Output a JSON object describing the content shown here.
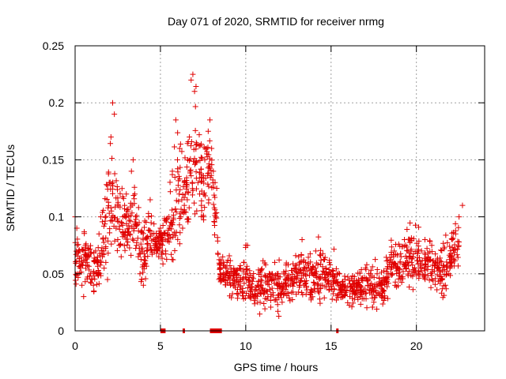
{
  "chart_data": {
    "type": "scatter",
    "title": "Day 071 of 2020, SRMTID for receiver nrmg",
    "xlabel": "GPS time / hours",
    "ylabel": "SRMTID / TECUs",
    "xlim": [
      0,
      24
    ],
    "ylim": [
      0,
      0.25
    ],
    "xticks": [
      0,
      5,
      10,
      15,
      20
    ],
    "yticks": [
      0,
      0.05,
      0.1,
      0.15,
      0.2,
      0.25
    ],
    "xtick_labels": [
      "0",
      "5",
      "10",
      "15",
      "20"
    ],
    "ytick_labels": [
      "0",
      "0.05",
      "0.1",
      "0.15",
      "0.2",
      "0.25"
    ],
    "grid": true,
    "marker": "plus",
    "color": "#e00000",
    "series": [
      {
        "name": "SRMTID",
        "points": [
          [
            0.0,
            0.1
          ],
          [
            0.1,
            0.09
          ],
          [
            0.2,
            0.07
          ],
          [
            0.3,
            0.055
          ],
          [
            0.4,
            0.04
          ],
          [
            0.5,
            0.03
          ],
          [
            0.6,
            0.075
          ],
          [
            0.7,
            0.06
          ],
          [
            0.8,
            0.065
          ],
          [
            0.9,
            0.05
          ],
          [
            1.0,
            0.045
          ],
          [
            1.1,
            0.035
          ],
          [
            1.2,
            0.07
          ],
          [
            1.3,
            0.06
          ],
          [
            1.4,
            0.085
          ],
          [
            1.5,
            0.1
          ],
          [
            1.6,
            0.065
          ],
          [
            1.7,
            0.055
          ],
          [
            1.8,
            0.06
          ],
          [
            1.9,
            0.045
          ],
          [
            2.0,
            0.13
          ],
          [
            2.1,
            0.17
          ],
          [
            2.2,
            0.2
          ],
          [
            2.3,
            0.19
          ],
          [
            2.4,
            0.09
          ],
          [
            2.5,
            0.08
          ],
          [
            2.6,
            0.075
          ],
          [
            2.7,
            0.065
          ],
          [
            2.8,
            0.1
          ],
          [
            2.9,
            0.11
          ],
          [
            3.0,
            0.12
          ],
          [
            3.1,
            0.105
          ],
          [
            3.2,
            0.085
          ],
          [
            3.3,
            0.14
          ],
          [
            3.4,
            0.15
          ],
          [
            3.5,
            0.12
          ],
          [
            3.6,
            0.075
          ],
          [
            3.7,
            0.065
          ],
          [
            3.8,
            0.05
          ],
          [
            3.9,
            0.045
          ],
          [
            4.0,
            0.04
          ],
          [
            4.1,
            0.065
          ],
          [
            4.2,
            0.07
          ],
          [
            4.3,
            0.1
          ],
          [
            4.4,
            0.115
          ],
          [
            4.5,
            0.085
          ],
          [
            4.6,
            0.08
          ],
          [
            4.7,
            0.075
          ],
          [
            4.8,
            0.07
          ],
          [
            4.9,
            0.065
          ],
          [
            5.0,
            0.09
          ],
          [
            5.1,
            0.08
          ],
          [
            5.2,
            0.085
          ],
          [
            5.3,
            0.07
          ],
          [
            5.5,
            0.1
          ],
          [
            5.7,
            0.14
          ],
          [
            5.9,
            0.185
          ],
          [
            6.0,
            0.15
          ],
          [
            6.1,
            0.12
          ],
          [
            6.2,
            0.1
          ],
          [
            6.3,
            0.09
          ],
          [
            6.4,
            0.11
          ],
          [
            6.5,
            0.13
          ],
          [
            6.6,
            0.15
          ],
          [
            6.7,
            0.17
          ],
          [
            6.8,
            0.22
          ],
          [
            6.9,
            0.225
          ],
          [
            7.0,
            0.21
          ],
          [
            7.1,
            0.165
          ],
          [
            7.2,
            0.13
          ],
          [
            7.3,
            0.12
          ],
          [
            7.4,
            0.11
          ],
          [
            7.5,
            0.1
          ],
          [
            7.6,
            0.15
          ],
          [
            7.7,
            0.16
          ],
          [
            7.8,
            0.175
          ],
          [
            7.9,
            0.185
          ],
          [
            8.0,
            0.16
          ],
          [
            8.1,
            0.14
          ],
          [
            8.2,
            0.13
          ],
          [
            8.3,
            0.125
          ],
          [
            8.5,
            0.05
          ],
          [
            8.7,
            0.045
          ],
          [
            8.9,
            0.06
          ],
          [
            9.1,
            0.04
          ],
          [
            9.3,
            0.055
          ],
          [
            9.5,
            0.05
          ],
          [
            9.7,
            0.045
          ],
          [
            9.9,
            0.06
          ],
          [
            10.1,
            0.075
          ],
          [
            10.3,
            0.035
          ],
          [
            10.5,
            0.03
          ],
          [
            10.7,
            0.025
          ],
          [
            10.9,
            0.04
          ],
          [
            11.1,
            0.035
          ],
          [
            11.3,
            0.03
          ],
          [
            11.5,
            0.045
          ],
          [
            11.7,
            0.06
          ],
          [
            11.9,
            0.04
          ],
          [
            12.1,
            0.035
          ],
          [
            12.3,
            0.05
          ],
          [
            12.5,
            0.04
          ],
          [
            12.7,
            0.045
          ],
          [
            12.9,
            0.055
          ],
          [
            13.1,
            0.065
          ],
          [
            13.3,
            0.08
          ],
          [
            13.5,
            0.06
          ],
          [
            13.7,
            0.055
          ],
          [
            13.9,
            0.05
          ],
          [
            14.1,
            0.07
          ],
          [
            14.3,
            0.045
          ],
          [
            14.5,
            0.04
          ],
          [
            14.7,
            0.055
          ],
          [
            14.9,
            0.06
          ],
          [
            15.1,
            0.05
          ],
          [
            15.3,
            0.045
          ],
          [
            15.5,
            0.05
          ],
          [
            15.7,
            0.04
          ],
          [
            15.9,
            0.035
          ],
          [
            16.1,
            0.03
          ],
          [
            16.3,
            0.035
          ],
          [
            16.5,
            0.04
          ],
          [
            16.7,
            0.03
          ],
          [
            16.9,
            0.035
          ],
          [
            17.1,
            0.045
          ],
          [
            17.3,
            0.04
          ],
          [
            17.5,
            0.035
          ],
          [
            17.7,
            0.05
          ],
          [
            17.9,
            0.04
          ],
          [
            18.1,
            0.035
          ],
          [
            18.3,
            0.045
          ],
          [
            18.5,
            0.06
          ],
          [
            18.7,
            0.07
          ],
          [
            18.9,
            0.055
          ],
          [
            19.1,
            0.065
          ],
          [
            19.3,
            0.08
          ],
          [
            19.5,
            0.07
          ],
          [
            19.7,
            0.06
          ],
          [
            19.9,
            0.055
          ],
          [
            20.1,
            0.05
          ],
          [
            20.3,
            0.07
          ],
          [
            20.5,
            0.08
          ],
          [
            20.7,
            0.065
          ],
          [
            20.9,
            0.075
          ],
          [
            21.1,
            0.06
          ],
          [
            21.3,
            0.055
          ],
          [
            21.5,
            0.045
          ],
          [
            21.7,
            0.04
          ],
          [
            21.9,
            0.05
          ],
          [
            22.1,
            0.08
          ],
          [
            22.3,
            0.085
          ],
          [
            22.5,
            0.1
          ],
          [
            22.7,
            0.11
          ]
        ],
        "envelope": [
          [
            0.0,
            0.025,
            0.11
          ],
          [
            0.5,
            0.025,
            0.1
          ],
          [
            1.0,
            0.02,
            0.095
          ],
          [
            1.5,
            0.03,
            0.11
          ],
          [
            2.0,
            0.05,
            0.205
          ],
          [
            2.5,
            0.06,
            0.16
          ],
          [
            3.0,
            0.06,
            0.13
          ],
          [
            3.5,
            0.05,
            0.155
          ],
          [
            4.0,
            0.035,
            0.11
          ],
          [
            4.5,
            0.05,
            0.12
          ],
          [
            5.0,
            0.06,
            0.1
          ],
          [
            5.5,
            0.05,
            0.14
          ],
          [
            6.0,
            0.04,
            0.205
          ],
          [
            6.5,
            0.06,
            0.2
          ],
          [
            7.0,
            0.08,
            0.235
          ],
          [
            7.5,
            0.08,
            0.19
          ],
          [
            8.0,
            0.1,
            0.19
          ],
          [
            8.5,
            0.03,
            0.07
          ],
          [
            9.0,
            0.02,
            0.085
          ],
          [
            9.5,
            0.02,
            0.07
          ],
          [
            10.0,
            0.01,
            0.085
          ],
          [
            10.5,
            0.01,
            0.065
          ],
          [
            11.0,
            0.01,
            0.075
          ],
          [
            11.5,
            0.015,
            0.07
          ],
          [
            12.0,
            0.01,
            0.065
          ],
          [
            12.5,
            0.015,
            0.08
          ],
          [
            13.0,
            0.02,
            0.085
          ],
          [
            13.5,
            0.02,
            0.09
          ],
          [
            14.0,
            0.015,
            0.09
          ],
          [
            14.5,
            0.02,
            0.085
          ],
          [
            15.0,
            0.02,
            0.075
          ],
          [
            15.5,
            0.02,
            0.065
          ],
          [
            16.0,
            0.015,
            0.06
          ],
          [
            16.5,
            0.015,
            0.06
          ],
          [
            17.0,
            0.015,
            0.07
          ],
          [
            17.5,
            0.015,
            0.07
          ],
          [
            18.0,
            0.015,
            0.065
          ],
          [
            18.5,
            0.025,
            0.1
          ],
          [
            19.0,
            0.025,
            0.095
          ],
          [
            19.5,
            0.03,
            0.11
          ],
          [
            20.0,
            0.03,
            0.1
          ],
          [
            20.5,
            0.03,
            0.095
          ],
          [
            21.0,
            0.03,
            0.09
          ],
          [
            21.5,
            0.02,
            0.085
          ],
          [
            22.0,
            0.035,
            0.1
          ],
          [
            22.5,
            0.05,
            0.115
          ]
        ]
      }
    ],
    "baseline_gaps": [
      [
        5.0,
        5.3
      ],
      [
        6.3,
        6.4
      ],
      [
        7.9,
        8.6
      ],
      [
        15.3,
        15.4
      ]
    ]
  }
}
